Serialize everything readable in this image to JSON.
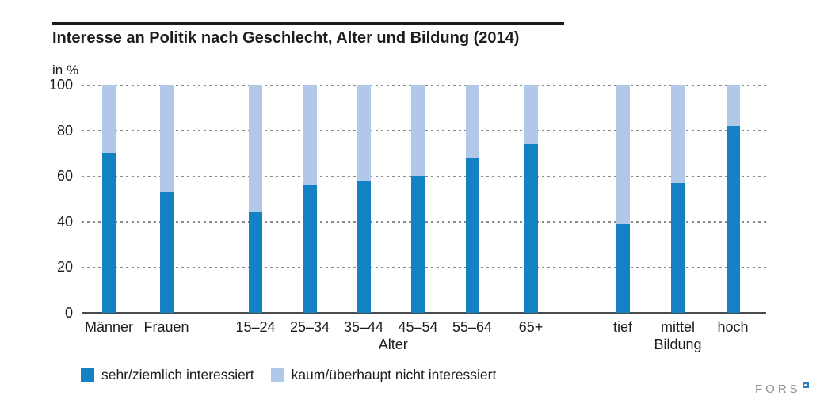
{
  "chart_data": {
    "type": "bar",
    "stacked": true,
    "title": "Interesse an Politik nach Geschlecht, Alter und Bildung (2014)",
    "unit_label": "in %",
    "ylim": [
      0,
      100
    ],
    "yticks": [
      0,
      20,
      40,
      60,
      80,
      100
    ],
    "grid": "horizontal-dotted",
    "legend_position": "bottom",
    "categories": [
      "Männer",
      "Frauen",
      "15–24",
      "25–34",
      "35–44",
      "45–54",
      "55–64",
      "65+",
      "tief",
      "mittel",
      "hoch"
    ],
    "groups": [
      {
        "label": "Alter",
        "from": "15–24",
        "to": "65+"
      },
      {
        "label": "Bildung",
        "from": "tief",
        "to": "hoch"
      }
    ],
    "series": [
      {
        "name": "sehr/ziemlich interessiert",
        "color": "#1581c5",
        "values": [
          70,
          53,
          44,
          56,
          58,
          60,
          68,
          74,
          39,
          57,
          82
        ]
      },
      {
        "name": "kaum/überhaupt nicht interessiert",
        "color": "#b1c8e9",
        "values": [
          30,
          47,
          56,
          44,
          42,
          40,
          32,
          26,
          61,
          43,
          18
        ]
      }
    ],
    "axis_colors": {
      "gridline": "#8a8a8a",
      "baseline": "#4b4b4b",
      "text": "#1d1d1b"
    }
  },
  "footer": {
    "logo_text": "FORS"
  }
}
